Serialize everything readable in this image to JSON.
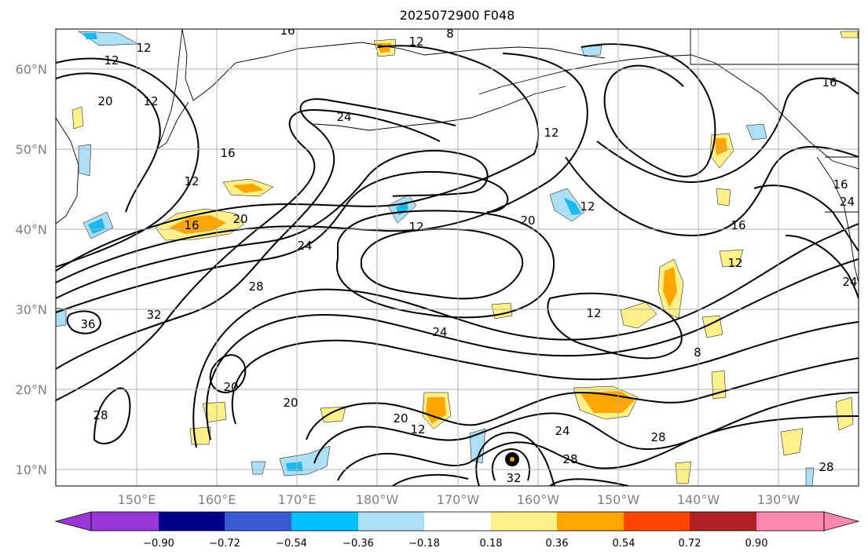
{
  "title": "2025072900 F048",
  "map": {
    "lat_labels": [
      "60°N",
      "50°N",
      "40°N",
      "30°N",
      "20°N",
      "10°N"
    ],
    "lon_labels": [
      "150°E",
      "160°E",
      "170°E",
      "180°W",
      "170°W",
      "160°W",
      "150°W",
      "140°W",
      "130°W"
    ],
    "contour_labels": [
      "12",
      "16",
      "12",
      "8",
      "12",
      "20",
      "12",
      "24",
      "16",
      "12",
      "16",
      "16",
      "20",
      "24",
      "12",
      "20",
      "12",
      "16",
      "12",
      "12",
      "36",
      "32",
      "28",
      "24",
      "12",
      "8",
      "24",
      "20",
      "20",
      "20",
      "12",
      "28",
      "24",
      "28",
      "32",
      "28",
      "28",
      "24",
      "16"
    ],
    "colors": {
      "weak_positive": "#fff08a",
      "moderate_positive": "#ffa500",
      "weak_negative": "#ade0f7",
      "moderate_negative": "#1ab8f0",
      "contour": "#000000",
      "grid": "#b0b0b0",
      "coast": "#000000"
    }
  },
  "colorbar": {
    "ticks": [
      "−0.90",
      "−0.72",
      "−0.54",
      "−0.36",
      "−0.18",
      "0.18",
      "0.36",
      "0.54",
      "0.72",
      "0.90"
    ],
    "colors": [
      "#9a36d6",
      "#00008b",
      "#3a5bd1",
      "#00bfff",
      "#ade0f7",
      "#ffffff",
      "#fff08a",
      "#ffa500",
      "#ff4500",
      "#b22222",
      "#ff88b0"
    ]
  }
}
